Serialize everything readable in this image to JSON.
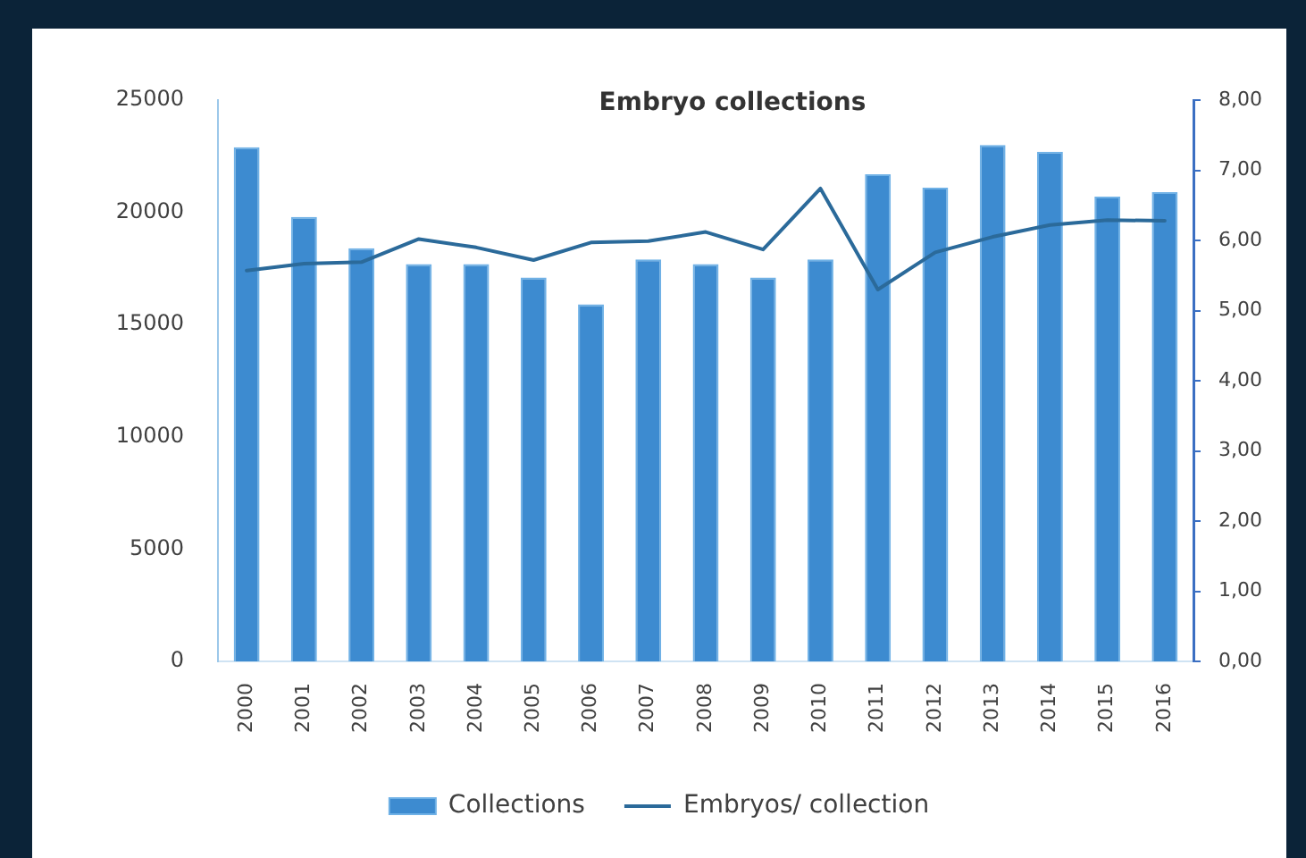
{
  "chart_data": {
    "type": "bar",
    "title": "Embryo collections",
    "categories": [
      "2000",
      "2001",
      "2002",
      "2003",
      "2004",
      "2005",
      "2006",
      "2007",
      "2008",
      "2009",
      "2010",
      "2011",
      "2012",
      "2013",
      "2014",
      "2015",
      "2016"
    ],
    "series": [
      {
        "name": "Collections",
        "color": "#3d8bd0",
        "values": [
          22900,
          19800,
          18400,
          17700,
          17700,
          17100,
          15900,
          17900,
          17700,
          17100,
          17900,
          21700,
          21100,
          23000,
          22700,
          20700,
          20900
        ]
      },
      {
        "name": "Embryos/ collection",
        "type": "line",
        "axis": "y2",
        "color": "#2b6a9a",
        "values": [
          5.57,
          5.67,
          5.69,
          6.02,
          5.9,
          5.72,
          5.97,
          5.99,
          6.12,
          5.87,
          6.74,
          5.3,
          5.83,
          6.05,
          6.22,
          6.29,
          6.28
        ]
      }
    ],
    "ylim": [
      0,
      25000
    ],
    "yticks": [
      0,
      5000,
      10000,
      15000,
      20000,
      25000
    ],
    "y2lim": [
      0,
      8
    ],
    "y2ticks": [
      {
        "value": 0,
        "label": "0,00"
      },
      {
        "value": 1,
        "label": "1,00"
      },
      {
        "value": 2,
        "label": "2,00"
      },
      {
        "value": 3,
        "label": "3,00"
      },
      {
        "value": 4,
        "label": "4,00"
      },
      {
        "value": 5,
        "label": "5,00"
      },
      {
        "value": 6,
        "label": "6,00"
      },
      {
        "value": 7,
        "label": "7,00"
      },
      {
        "value": 8,
        "label": "8,00"
      }
    ],
    "legend": "bottom",
    "marker": "none",
    "line_style": "solid"
  }
}
